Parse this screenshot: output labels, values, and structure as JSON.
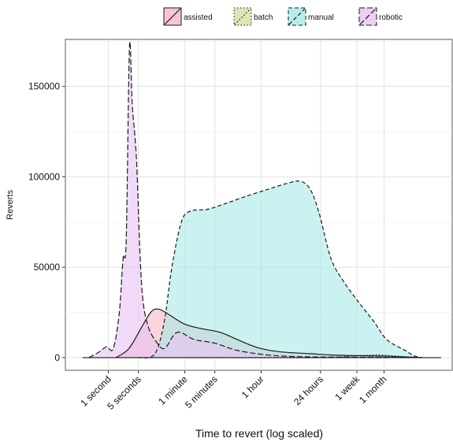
{
  "chart_data": {
    "type": "area",
    "title": "",
    "xlabel": "Time to revert (log scaled)",
    "ylabel": "Reverts",
    "x_scale": "log",
    "x_unit": "seconds",
    "xlim": [
      0.1,
      100000000
    ],
    "ylim": [
      -7000,
      176000
    ],
    "y_ticks": [
      0,
      50000,
      100000,
      150000
    ],
    "y_tick_labels": [
      "0",
      "50000",
      "100000",
      "150000"
    ],
    "x_ticks": [
      {
        "label": "1 second",
        "seconds": 1
      },
      {
        "label": "5 seconds",
        "seconds": 5
      },
      {
        "label": "1 minute",
        "seconds": 60
      },
      {
        "label": "5 minutes",
        "seconds": 300
      },
      {
        "label": "1 hour",
        "seconds": 3600
      },
      {
        "label": "24 hours",
        "seconds": 86400
      },
      {
        "label": "1 week",
        "seconds": 604800
      },
      {
        "label": "1 month",
        "seconds": 2592000
      }
    ],
    "grid": true,
    "legend_position": "top",
    "series": [
      {
        "name": "assisted",
        "fill": "#f6b6c7",
        "dash": "solid",
        "points": [
          [
            1.5,
            0
          ],
          [
            3,
            5000
          ],
          [
            6,
            17000
          ],
          [
            10,
            25500
          ],
          [
            15,
            26800
          ],
          [
            25,
            24000
          ],
          [
            60,
            18500
          ],
          [
            150,
            16000
          ],
          [
            400,
            14000
          ],
          [
            1000,
            10000
          ],
          [
            3000,
            5500
          ],
          [
            10000,
            3200
          ],
          [
            50000,
            2200
          ],
          [
            150000,
            1500
          ],
          [
            600000,
            1100
          ],
          [
            2000000,
            900
          ],
          [
            8000000,
            400
          ],
          [
            20000000,
            0
          ]
        ]
      },
      {
        "name": "batch",
        "fill": "#cfe0a5",
        "dash": "dotted",
        "points": [
          [
            1.5,
            0
          ],
          [
            10,
            0
          ],
          [
            100000,
            0
          ],
          [
            300000,
            600
          ],
          [
            800000,
            1200
          ],
          [
            2000000,
            1500
          ],
          [
            5000000,
            900
          ],
          [
            10000000,
            300
          ],
          [
            20000000,
            0
          ]
        ]
      },
      {
        "name": "manual",
        "fill": "#a8e9e8",
        "dash": "dashed",
        "points": [
          [
            5,
            0
          ],
          [
            12,
            2000
          ],
          [
            20,
            20000
          ],
          [
            30,
            50000
          ],
          [
            50,
            75000
          ],
          [
            80,
            81000
          ],
          [
            200,
            82000
          ],
          [
            500,
            85000
          ],
          [
            1500,
            89000
          ],
          [
            5000,
            93000
          ],
          [
            15000,
            96500
          ],
          [
            30000,
            97500
          ],
          [
            50000,
            93000
          ],
          [
            80000,
            80000
          ],
          [
            150000,
            55000
          ],
          [
            300000,
            42000
          ],
          [
            700000,
            30000
          ],
          [
            1500000,
            20000
          ],
          [
            3000000,
            10000
          ],
          [
            8000000,
            4000
          ],
          [
            13000000,
            1000
          ],
          [
            20000000,
            0
          ]
        ]
      },
      {
        "name": "robotic",
        "fill": "#e7c3f3",
        "dash": "longdash",
        "points": [
          [
            0.35,
            0
          ],
          [
            0.6,
            3000
          ],
          [
            0.9,
            6000
          ],
          [
            1.3,
            5000
          ],
          [
            1.8,
            25000
          ],
          [
            2.2,
            55000
          ],
          [
            2.6,
            65000
          ],
          [
            3.1,
            172000
          ],
          [
            3.6,
            140000
          ],
          [
            4.5,
            110000
          ],
          [
            5.5,
            55000
          ],
          [
            6.5,
            30000
          ],
          [
            8.5,
            17000
          ],
          [
            12,
            10000
          ],
          [
            20,
            5000
          ],
          [
            40,
            14000
          ],
          [
            100,
            10000
          ],
          [
            300,
            8000
          ],
          [
            1000,
            4000
          ],
          [
            5000,
            1500
          ],
          [
            30000,
            500
          ],
          [
            1000000,
            200
          ],
          [
            20000000,
            0
          ]
        ]
      }
    ],
    "baseline_series": {
      "name": "manual",
      "note": ""
    }
  }
}
